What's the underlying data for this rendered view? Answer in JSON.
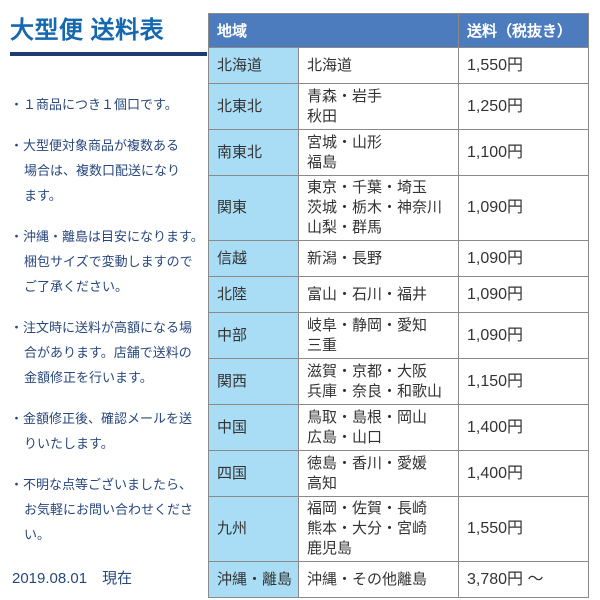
{
  "left": {
    "title": "大型便 送料表",
    "accent_color": "#1568b0",
    "underline_color": "#1c3c72",
    "notes_color": "#28477d",
    "notes_bullet": "・",
    "notes": [
      {
        "lines": [
          "１商品につき１個口です。"
        ]
      },
      {
        "lines": [
          "大型便対象商品が複数ある",
          "場合は、複数口配送になり",
          "ます。"
        ]
      },
      {
        "lines": [
          "沖縄・離島は目安になります。",
          "梱包サイズで変動しますので",
          "ご了承ください。"
        ]
      },
      {
        "lines": [
          "注文時に送料が高額になる場",
          "合があります。店舗で送料の",
          "金額修正を行います。"
        ]
      },
      {
        "lines": [
          "金額修正後、確認メールを送",
          "りいたします。"
        ]
      },
      {
        "lines": [
          "不明な点等ございましたら、",
          "お気軽にお問い合わせください。"
        ]
      }
    ],
    "date": "2019.08.01　現在"
  },
  "table": {
    "header_bg": "#4c7cbe",
    "region_col_bg": "#a9ddf6",
    "border_color": "#8a8a8a",
    "header": {
      "region": "地域",
      "fee": "送料（税抜き）"
    },
    "rows": [
      {
        "region": "北海道",
        "prefectures": [
          "北海道"
        ],
        "fee": "1,550円"
      },
      {
        "region": "北東北",
        "prefectures": [
          "青森・岩手",
          "秋田"
        ],
        "fee": "1,250円"
      },
      {
        "region": "南東北",
        "prefectures": [
          "宮城・山形",
          "福島"
        ],
        "fee": "1,100円"
      },
      {
        "region": "関東",
        "prefectures": [
          "東京・千葉・埼玉",
          "茨城・栃木・神奈川",
          "山梨・群馬"
        ],
        "fee": "1,090円"
      },
      {
        "region": "信越",
        "prefectures": [
          "新潟・長野"
        ],
        "fee": "1,090円"
      },
      {
        "region": "北陸",
        "prefectures": [
          "富山・石川・福井"
        ],
        "fee": "1,090円"
      },
      {
        "region": "中部",
        "prefectures": [
          "岐阜・静岡・愛知",
          "三重"
        ],
        "fee": "1,090円"
      },
      {
        "region": "関西",
        "prefectures": [
          "滋賀・京都・大阪",
          "兵庫・奈良・和歌山"
        ],
        "fee": "1,150円"
      },
      {
        "region": "中国",
        "prefectures": [
          "鳥取・島根・岡山",
          "広島・山口"
        ],
        "fee": "1,400円"
      },
      {
        "region": "四国",
        "prefectures": [
          "徳島・香川・愛媛",
          "高知"
        ],
        "fee": "1,400円"
      },
      {
        "region": "九州",
        "prefectures": [
          "福岡・佐賀・長崎",
          "熊本・大分・宮崎",
          "鹿児島"
        ],
        "fee": "1,550円"
      },
      {
        "region": "沖縄・離島",
        "prefectures": [
          "沖縄・その他離島"
        ],
        "fee": "3,780円 ～"
      }
    ]
  }
}
